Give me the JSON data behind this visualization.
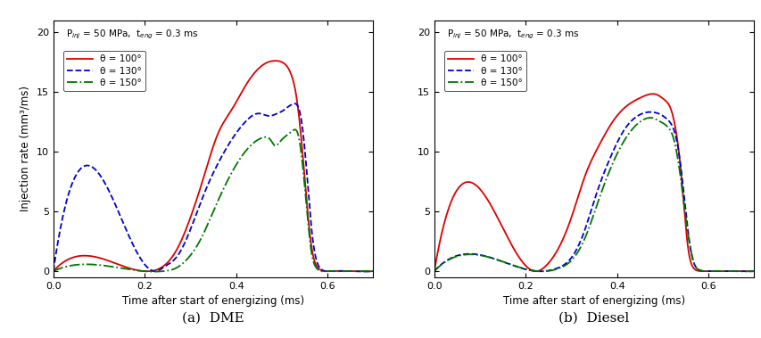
{
  "xlabel": "Time after start of energizing (ms)",
  "ylabel": "Injection rate (mm³/ms)",
  "xlim": [
    0.0,
    0.7
  ],
  "ylim": [
    -0.5,
    21
  ],
  "yticks": [
    0,
    5,
    10,
    15,
    20
  ],
  "xticks": [
    0.0,
    0.2,
    0.4,
    0.6
  ],
  "legend_labels": [
    "θ = 100°",
    "θ = 130°",
    "θ = 150°"
  ],
  "colors": [
    "#dd0000",
    "#0000cc",
    "#007700"
  ],
  "linestyles": [
    "-",
    "--",
    "-."
  ],
  "caption_a": "(a)  DME",
  "caption_b": "(b)  Diesel",
  "annotation": "P$_{inj}$ = 50 MPa,  t$_{eng}$ = 0.3 ms",
  "dme": {
    "t100": [
      0.0,
      0.2,
      0.21,
      0.22,
      0.24,
      0.27,
      0.3,
      0.33,
      0.36,
      0.39,
      0.42,
      0.45,
      0.47,
      0.49,
      0.5,
      0.51,
      0.52,
      0.53,
      0.545,
      0.555,
      0.565,
      0.575,
      0.585,
      0.595,
      0.605,
      0.65,
      0.7
    ],
    "v100": [
      0.0,
      0.0,
      0.0,
      0.05,
      0.4,
      1.8,
      4.5,
      8.0,
      11.5,
      13.5,
      15.5,
      17.0,
      17.5,
      17.6,
      17.5,
      17.2,
      16.5,
      15.0,
      10.0,
      5.5,
      2.0,
      0.5,
      0.1,
      0.0,
      0.0,
      0.0,
      0.0
    ],
    "t130": [
      0.0,
      0.22,
      0.23,
      0.24,
      0.27,
      0.3,
      0.33,
      0.36,
      0.39,
      0.42,
      0.45,
      0.47,
      0.49,
      0.505,
      0.515,
      0.525,
      0.535,
      0.545,
      0.555,
      0.565,
      0.575,
      0.585,
      0.595,
      0.605,
      0.65,
      0.7
    ],
    "v130": [
      0.0,
      0.0,
      0.05,
      0.3,
      1.2,
      3.5,
      6.5,
      9.0,
      11.0,
      12.5,
      13.2,
      13.0,
      13.2,
      13.5,
      13.8,
      14.0,
      13.8,
      12.0,
      8.0,
      3.5,
      1.0,
      0.2,
      0.0,
      0.0,
      0.0,
      0.0
    ],
    "t150": [
      0.0,
      0.24,
      0.25,
      0.265,
      0.29,
      0.32,
      0.35,
      0.38,
      0.41,
      0.44,
      0.46,
      0.475,
      0.485,
      0.495,
      0.505,
      0.515,
      0.525,
      0.535,
      0.545,
      0.555,
      0.565,
      0.575,
      0.585,
      0.595,
      0.605,
      0.65,
      0.7
    ],
    "v150": [
      0.0,
      0.0,
      0.05,
      0.2,
      0.9,
      2.5,
      5.0,
      7.5,
      9.5,
      10.8,
      11.2,
      11.0,
      10.5,
      10.8,
      11.2,
      11.5,
      11.8,
      11.5,
      9.0,
      5.0,
      1.5,
      0.3,
      0.0,
      0.0,
      0.0,
      0.0,
      0.0
    ]
  },
  "diesel": {
    "t100": [
      0.0,
      0.22,
      0.23,
      0.24,
      0.27,
      0.3,
      0.33,
      0.36,
      0.39,
      0.42,
      0.45,
      0.47,
      0.485,
      0.495,
      0.505,
      0.515,
      0.525,
      0.535,
      0.545,
      0.555,
      0.565,
      0.575,
      0.585,
      0.6,
      0.65,
      0.7
    ],
    "v100": [
      0.0,
      0.0,
      0.05,
      0.3,
      1.8,
      4.5,
      8.0,
      10.5,
      12.5,
      13.8,
      14.5,
      14.8,
      14.8,
      14.6,
      14.3,
      13.8,
      12.5,
      10.0,
      6.0,
      2.0,
      0.4,
      0.05,
      0.0,
      0.0,
      0.0,
      0.0
    ],
    "t130": [
      0.0,
      0.24,
      0.25,
      0.265,
      0.295,
      0.325,
      0.355,
      0.385,
      0.415,
      0.445,
      0.465,
      0.48,
      0.49,
      0.5,
      0.51,
      0.52,
      0.53,
      0.54,
      0.55,
      0.56,
      0.57,
      0.58,
      0.59,
      0.6,
      0.65,
      0.7
    ],
    "v130": [
      0.0,
      0.0,
      0.05,
      0.2,
      0.9,
      3.0,
      6.5,
      9.5,
      11.8,
      13.0,
      13.3,
      13.3,
      13.2,
      13.0,
      12.7,
      12.2,
      11.0,
      8.5,
      5.0,
      2.0,
      0.5,
      0.1,
      0.0,
      0.0,
      0.0,
      0.0
    ],
    "t150": [
      0.0,
      0.245,
      0.255,
      0.27,
      0.3,
      0.33,
      0.36,
      0.39,
      0.42,
      0.45,
      0.465,
      0.48,
      0.49,
      0.5,
      0.51,
      0.52,
      0.53,
      0.54,
      0.55,
      0.56,
      0.57,
      0.58,
      0.59,
      0.6,
      0.65,
      0.7
    ],
    "v150": [
      0.0,
      0.0,
      0.05,
      0.2,
      0.9,
      2.8,
      6.0,
      9.0,
      11.2,
      12.5,
      12.8,
      12.8,
      12.6,
      12.4,
      12.1,
      11.5,
      10.0,
      7.5,
      4.5,
      2.0,
      0.5,
      0.1,
      0.0,
      0.0,
      0.0,
      0.0
    ]
  }
}
